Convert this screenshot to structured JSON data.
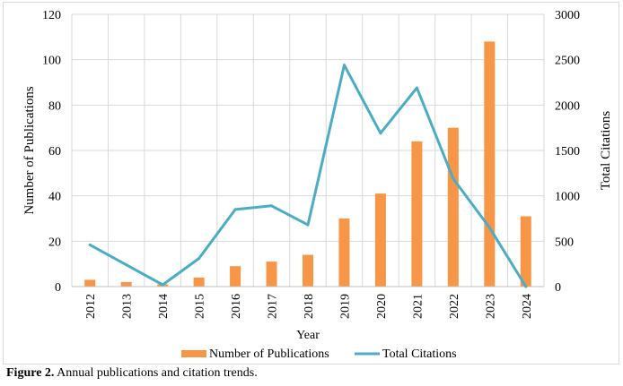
{
  "chart_data": {
    "type": "bar+line",
    "categories": [
      "2012",
      "2013",
      "2014",
      "2015",
      "2016",
      "2017",
      "2018",
      "2019",
      "2020",
      "2021",
      "2022",
      "2023",
      "2024"
    ],
    "series": [
      {
        "name": "Number of Publications",
        "type": "bar",
        "axis": "left",
        "color": "#f79646",
        "values": [
          3,
          2,
          1,
          4,
          9,
          11,
          14,
          30,
          41,
          64,
          70,
          108,
          31
        ]
      },
      {
        "name": "Total Citations",
        "type": "line",
        "axis": "right",
        "color": "#4bacc6",
        "values": [
          460,
          240,
          20,
          310,
          850,
          890,
          680,
          2440,
          1690,
          2190,
          1190,
          650,
          0
        ]
      }
    ],
    "xlabel": "Year",
    "ylabel": "Number of Publications",
    "y2label": "Total Citations",
    "ylim": [
      0,
      120
    ],
    "y2lim": [
      0,
      3000
    ],
    "yticks": [
      0,
      20,
      40,
      60,
      80,
      100,
      120
    ],
    "y2ticks": [
      0,
      500,
      1000,
      1500,
      2000,
      2500,
      3000
    ],
    "grid": true,
    "legend_position": "bottom"
  },
  "caption": {
    "label": "Figure 2.",
    "text": " Annual publications and citation trends."
  }
}
